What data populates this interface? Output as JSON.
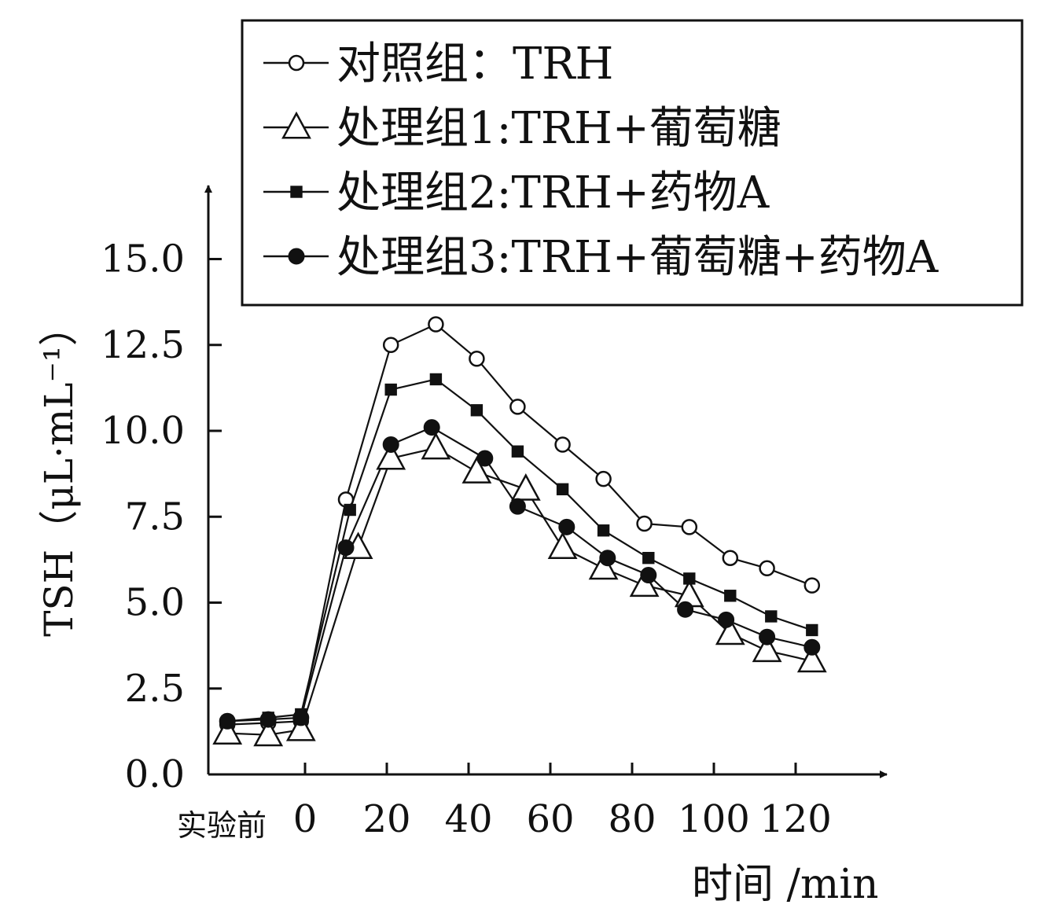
{
  "chart_data": {
    "type": "line",
    "title": "",
    "ylabel": "TSH（μL·mL⁻¹）",
    "xlabel": "时间 /min",
    "ylim": [
      0,
      15
    ],
    "xlim": [
      -25,
      133
    ],
    "y_ticks": [
      "0.0",
      "2.5",
      "5.0",
      "7.5",
      "10.0",
      "12.5",
      "15.0"
    ],
    "y_tick_values": [
      0,
      2.5,
      5,
      7.5,
      10,
      12.5,
      15
    ],
    "x_ticks": [
      "实验前",
      "0",
      "20",
      "40",
      "60",
      "80",
      "100",
      "120"
    ],
    "x_tick_values": [
      -16,
      0,
      20,
      40,
      60,
      80,
      100,
      120
    ],
    "legend_position": "top-right",
    "series": [
      {
        "name": "对照组：TRH",
        "marker": "open-circle",
        "x": [
          -19,
          -9,
          -1,
          10,
          21,
          32,
          42,
          52,
          63,
          73,
          83,
          94,
          104,
          113,
          124
        ],
        "y": [
          1.45,
          1.5,
          1.55,
          8.0,
          12.5,
          13.1,
          12.1,
          10.7,
          9.6,
          8.6,
          7.3,
          7.2,
          6.3,
          6.0,
          5.5
        ]
      },
      {
        "name": "处理组1:TRH+葡萄糖",
        "marker": "open-triangle",
        "x": [
          -19,
          -9,
          -1,
          13,
          21,
          32,
          42,
          54,
          63,
          73,
          83,
          94,
          104,
          113,
          124
        ],
        "y": [
          1.2,
          1.15,
          1.3,
          6.6,
          9.2,
          9.5,
          8.8,
          8.3,
          6.6,
          6.0,
          5.5,
          5.2,
          4.1,
          3.6,
          3.3
        ]
      },
      {
        "name": "处理组2:TRH+药物A",
        "marker": "filled-square",
        "x": [
          -19,
          -9,
          -1,
          11,
          21,
          32,
          42,
          52,
          63,
          73,
          84,
          94,
          104,
          114,
          124
        ],
        "y": [
          1.55,
          1.65,
          1.75,
          7.7,
          11.2,
          11.5,
          10.6,
          9.4,
          8.3,
          7.1,
          6.3,
          5.7,
          5.2,
          4.6,
          4.2
        ]
      },
      {
        "name": "处理组3:TRH+葡萄糖+药物A",
        "marker": "filled-circle",
        "x": [
          -19,
          -9,
          -1,
          10,
          21,
          31,
          44,
          52,
          64,
          74,
          84,
          93,
          103,
          113,
          124
        ],
        "y": [
          1.55,
          1.6,
          1.65,
          6.6,
          9.6,
          10.1,
          9.2,
          7.8,
          7.2,
          6.3,
          5.8,
          4.8,
          4.5,
          4.0,
          3.7
        ]
      }
    ]
  }
}
